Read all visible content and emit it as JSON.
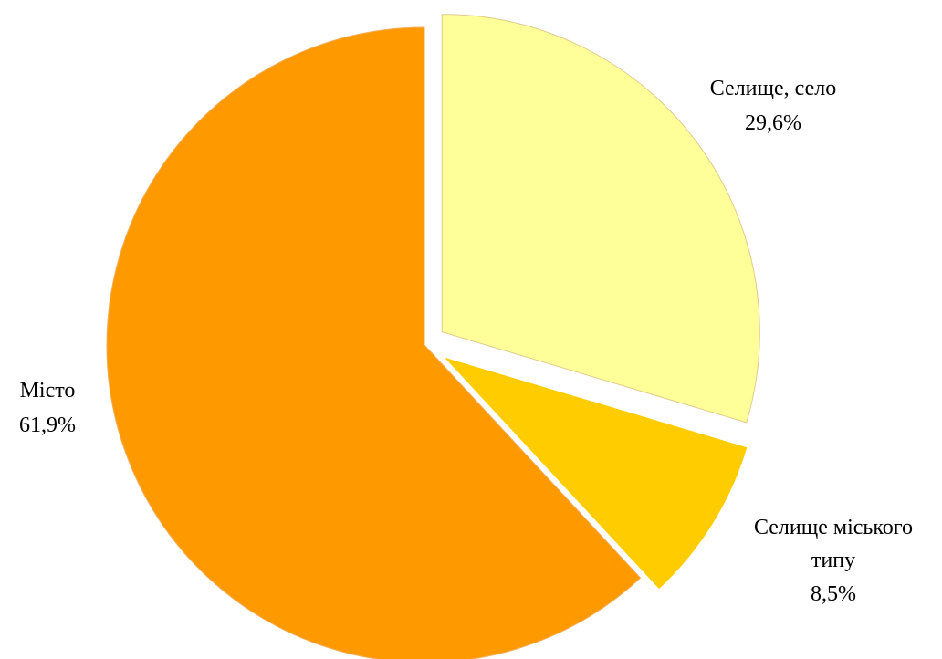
{
  "chart_data": {
    "type": "pie",
    "title": "",
    "slices": [
      {
        "label": "Селище, село",
        "label_lines": [
          "Селище, село"
        ],
        "value_text": "29,6%",
        "value": 29.6,
        "color": "#ffff99",
        "stroke": "#e3c98c",
        "exploded": true
      },
      {
        "label": "Селище міського типу",
        "label_lines": [
          "Селище міського",
          "типу"
        ],
        "value_text": "8,5%",
        "value": 8.5,
        "color": "#ffcc00",
        "stroke": "#ffffff",
        "exploded": true
      },
      {
        "label": "Місто",
        "label_lines": [
          "Місто"
        ],
        "value_text": "61,9%",
        "value": 61.9,
        "color": "#ff9900",
        "stroke": "#f0b060",
        "exploded": false
      }
    ],
    "legend": "none",
    "start_angle": "12 o'clock",
    "direction": "clockwise"
  }
}
